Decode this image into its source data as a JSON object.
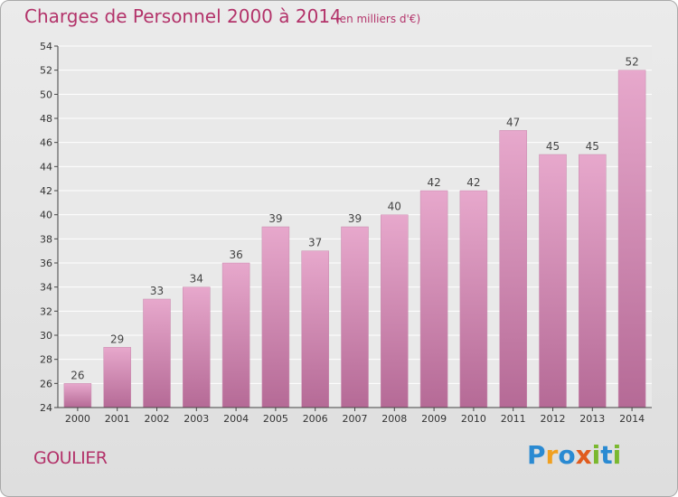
{
  "title": "Charges de Personnel 2000 à 2014",
  "unit_note": "(en milliers d'€)",
  "commune": "GOULIER",
  "logo": {
    "text": "Proxiti",
    "letters": [
      {
        "ch": "P",
        "color": "#2a8ad2"
      },
      {
        "ch": "r",
        "color": "#f0a020"
      },
      {
        "ch": "o",
        "color": "#2a8ad2"
      },
      {
        "ch": "x",
        "color": "#e05b1e"
      },
      {
        "ch": "i",
        "color": "#7ab82f"
      },
      {
        "ch": "t",
        "color": "#2a8ad2"
      },
      {
        "ch": "i",
        "color": "#7ab82f"
      }
    ]
  },
  "colors": {
    "text": "#b3336a",
    "bar_top": "#e7a8cc",
    "bar_bottom": "#b56a96",
    "axis": "#444444"
  },
  "chart_data": {
    "type": "bar",
    "categories": [
      "2000",
      "2001",
      "2002",
      "2003",
      "2004",
      "2005",
      "2006",
      "2007",
      "2008",
      "2009",
      "2010",
      "2011",
      "2012",
      "2013",
      "2014"
    ],
    "values": [
      26,
      29,
      33,
      34,
      36,
      39,
      37,
      39,
      40,
      42,
      42,
      47,
      45,
      45,
      52
    ],
    "ylim": [
      24,
      54
    ],
    "yticks": [
      24,
      26,
      28,
      30,
      32,
      34,
      36,
      38,
      40,
      42,
      44,
      46,
      48,
      50,
      52,
      54
    ],
    "grid": true,
    "data_labels": true
  }
}
